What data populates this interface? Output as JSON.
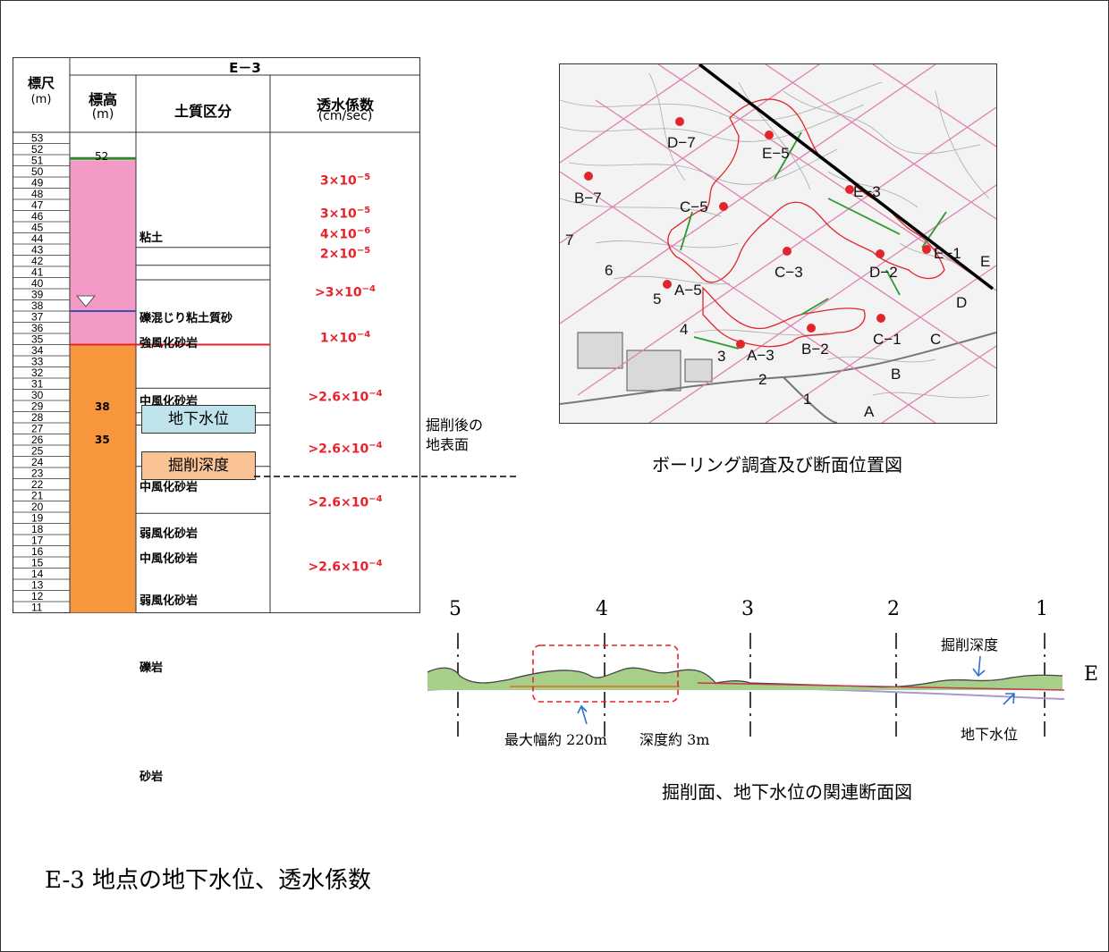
{
  "log": {
    "title": "E－3",
    "hdr_scale": "標尺",
    "hdr_scale_unit": "(m)",
    "hdr_elev": "標高",
    "hdr_elev_unit": "(m)",
    "hdr_soil": "土質区分",
    "hdr_perm": "透水係数",
    "hdr_perm_unit": "(cm/sec)",
    "scale_top": 53,
    "scale_bottom": 11,
    "elev_top": "52",
    "elev_water": "38",
    "elev_excav": "35",
    "soils": [
      {
        "label": "粘土",
        "top": 51,
        "bottom": 43.2
      },
      {
        "label": "礫混じり粘土質砂",
        "top": 43.2,
        "bottom": 41.6
      },
      {
        "label": "強風化砂岩",
        "top": 41.6,
        "bottom": 40.3
      },
      {
        "label": "中風化砂岩",
        "top": 40.3,
        "bottom": 30.6
      },
      {
        "label": "弱風化砂岩",
        "top": 30.6,
        "bottom": 28.4
      },
      {
        "label": "中風化砂岩",
        "top": 28.4,
        "bottom": 27.3
      },
      {
        "label": "弱風化砂岩",
        "top": 27.3,
        "bottom": 23.6
      },
      {
        "label": "礫岩",
        "top": 23.6,
        "bottom": 19.4
      },
      {
        "label": "砂岩",
        "top": 19.4,
        "bottom": 10.6
      }
    ],
    "perms": [
      {
        "base": "3×10",
        "exp": "−5",
        "at": 49.3
      },
      {
        "base": "3×10",
        "exp": "−5",
        "at": 46.3
      },
      {
        "base": "4×10",
        "exp": "−6",
        "at": 44.5
      },
      {
        "base": "2×10",
        "exp": "−5",
        "at": 42.7
      },
      {
        "base": ">3×10",
        "exp": "−4",
        "at": 39.3
      },
      {
        "base": "1×10",
        "exp": "−4",
        "at": 35.2
      },
      {
        "base": ">2.6×10",
        "exp": "−4",
        "at": 29.9
      },
      {
        "base": ">2.6×10",
        "exp": "−4",
        "at": 25.3
      },
      {
        "base": ">2.6×10",
        "exp": "−4",
        "at": 20.5
      },
      {
        "base": ">2.6×10",
        "exp": "−4",
        "at": 14.7
      }
    ],
    "groundwater_label": "地下水位",
    "excavation_label": "掘削深度",
    "after_excavation_label_1": "掘削後の",
    "after_excavation_label_2": "地表面",
    "colors": {
      "upper": "#f39bc6",
      "lower": "#f7963c",
      "perm": "#e8222a",
      "gw_box": "#bfe3ea",
      "ex_box": "#fac396"
    }
  },
  "map": {
    "caption": "ボーリング調査及び断面位置図",
    "points": [
      "D−7",
      "E−5",
      "B−7",
      "C−5",
      "E−3",
      "C−3",
      "D−2",
      "E−1",
      "A−5",
      "A−3",
      "B−2",
      "C−1"
    ],
    "line_labels": [
      "7",
      "6",
      "5",
      "4",
      "3",
      "2",
      "1",
      "A",
      "B",
      "C",
      "D",
      "E"
    ]
  },
  "section": {
    "caption": "掘削面、地下水位の関連断面図",
    "columns": [
      "5",
      "4",
      "3",
      "2",
      "1"
    ],
    "line_name": "E",
    "excavation_depth_label": "掘削深度",
    "groundwater_label": "地下水位",
    "max_width_label": "最大幅約 220m",
    "depth_label": "深度約 3m"
  },
  "bottom_caption": "E-3 地点の地下水位、透水係数"
}
